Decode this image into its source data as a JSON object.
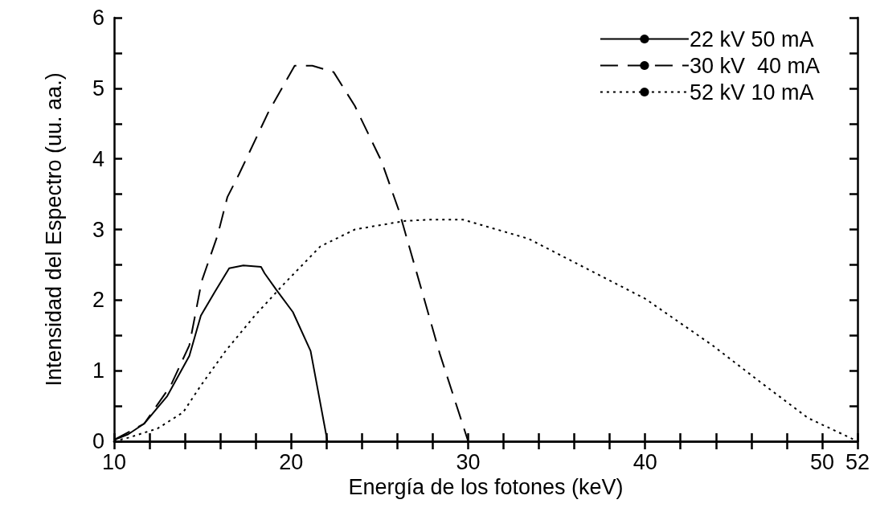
{
  "chart_data": {
    "type": "line",
    "xlabel": "Energía de los fotones (keV)",
    "ylabel": "Intensidad del Espectro (uu. aa.)",
    "xlim": [
      10,
      52
    ],
    "xticks": [
      10,
      {
        "value": 12,
        "label": null
      },
      {
        "value": 14,
        "label": null
      },
      {
        "value": 16,
        "label": null
      },
      {
        "value": 18,
        "label": null
      },
      20,
      {
        "value": 22,
        "label": null
      },
      {
        "value": 24,
        "label": null
      },
      {
        "value": 26,
        "label": null
      },
      {
        "value": 28,
        "label": null
      },
      30,
      {
        "value": 32,
        "label": null
      },
      {
        "value": 34,
        "label": null
      },
      {
        "value": 36,
        "label": null
      },
      {
        "value": 38,
        "label": null
      },
      40,
      {
        "value": 42,
        "label": null
      },
      {
        "value": 44,
        "label": null
      },
      {
        "value": 46,
        "label": null
      },
      {
        "value": 48,
        "label": null
      },
      50,
      52
    ],
    "ylim": [
      0,
      6
    ],
    "yticks": [
      0,
      {
        "value": 0.5,
        "label": null
      },
      1,
      {
        "value": 1.5,
        "label": null
      },
      2,
      {
        "value": 2.5,
        "label": null
      },
      3,
      {
        "value": 3.5,
        "label": null
      },
      4,
      {
        "value": 4.5,
        "label": null
      },
      5,
      {
        "value": 5.5,
        "label": null
      },
      6
    ],
    "grid": false,
    "legend": "top right",
    "marker": "none",
    "series": [
      {
        "name": "22 kV 50 mA",
        "color": "#000000",
        "line_style": "solid",
        "x": [
          10,
          10.8,
          11.7,
          13.0,
          14.25,
          14.9,
          15.7,
          16.5,
          17.3,
          18.3,
          18.5,
          19.15,
          20.1,
          21.1,
          22.05
        ],
        "values": [
          0.02,
          0.1,
          0.25,
          0.64,
          1.21,
          1.78,
          2.12,
          2.45,
          2.49,
          2.47,
          2.38,
          2.15,
          1.83,
          1.28,
          0
        ]
      },
      {
        "name": "30 kV  40 mA",
        "color": "#000000",
        "line_style": "dashed",
        "x": [
          10,
          11.7,
          13.2,
          14.25,
          14.95,
          15.85,
          16.4,
          17.05,
          18.75,
          19.3,
          20.2,
          21.2,
          22.4,
          23.6,
          25.1,
          26.1,
          28.4,
          30
        ],
        "values": [
          0.02,
          0.25,
          0.79,
          1.36,
          2.27,
          2.92,
          3.46,
          3.78,
          4.68,
          4.92,
          5.32,
          5.32,
          5.23,
          4.75,
          3.97,
          3.26,
          1.24,
          0
        ]
      },
      {
        "name": "52 kV 10 mA",
        "color": "#000000",
        "line_style": "dotted",
        "x": [
          10,
          10.8,
          12.45,
          13.9,
          14.9,
          16.3,
          17.95,
          19.6,
          21.65,
          23.6,
          26.4,
          27.8,
          29.7,
          33.4,
          40,
          43.8,
          46.5,
          49.2,
          52
        ],
        "values": [
          0,
          0.05,
          0.18,
          0.41,
          0.79,
          1.28,
          1.78,
          2.23,
          2.76,
          3.0,
          3.12,
          3.14,
          3.14,
          2.87,
          2.02,
          1.36,
          0.84,
          0.33,
          0
        ]
      }
    ]
  }
}
